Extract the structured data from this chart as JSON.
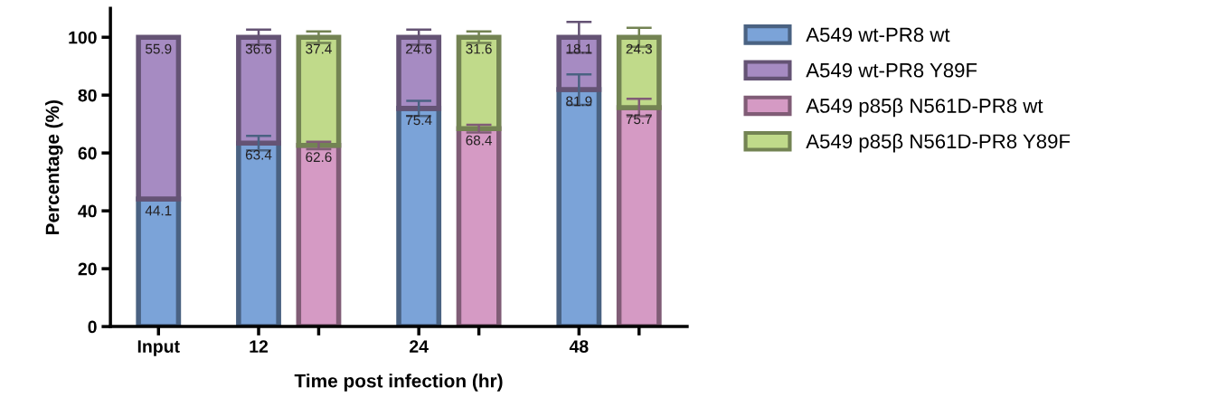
{
  "chart_data": {
    "type": "bar",
    "stacked": true,
    "xlabel": "Time post infection (hr)",
    "ylabel": "Percentage (%)",
    "categories": [
      "Input",
      "12",
      null,
      "24",
      null,
      "48",
      null
    ],
    "series": [
      {
        "name": "A549 wt-PR8 wt",
        "color": "#7ba3d8",
        "values": [
          44.1,
          63.4,
          null,
          75.4,
          null,
          81.9,
          null
        ],
        "errors": [
          null,
          2.5,
          null,
          2.6,
          null,
          5.3,
          null
        ]
      },
      {
        "name": "A549 wt-PR8 Y89F",
        "color": "#a68bc2",
        "values": [
          55.9,
          36.6,
          null,
          24.6,
          null,
          18.1,
          null
        ],
        "errors": [
          null,
          2.6,
          null,
          2.6,
          null,
          5.3,
          null
        ]
      },
      {
        "name": "A549 p85β N561D-PR8 wt",
        "color": "#d59ac4",
        "values": [
          null,
          null,
          62.6,
          null,
          68.4,
          null,
          75.7
        ],
        "errors": [
          null,
          null,
          1.3,
          null,
          1.3,
          null,
          3.0
        ]
      },
      {
        "name": "A549 p85β N561D-PR8 Y89F",
        "color": "#c0da8a",
        "values": [
          null,
          null,
          37.4,
          null,
          31.6,
          null,
          24.3
        ],
        "errors": [
          null,
          null,
          2.0,
          null,
          2.0,
          null,
          3.3
        ]
      }
    ],
    "ylim": [
      0,
      110
    ],
    "yticks": [
      0,
      20,
      40,
      60,
      80,
      100
    ],
    "data_labels": true,
    "grid": false,
    "legend": "right"
  }
}
